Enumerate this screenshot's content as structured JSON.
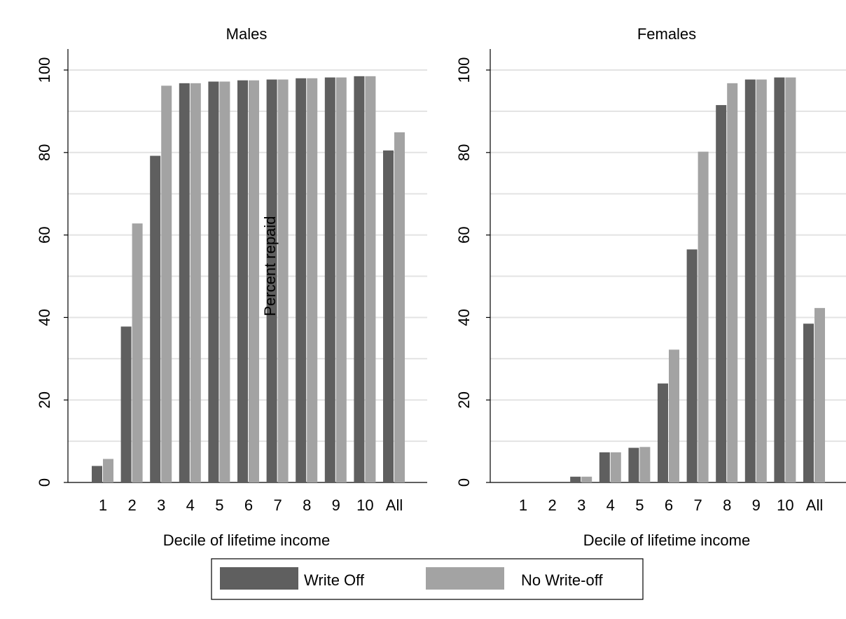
{
  "chart_data": [
    {
      "type": "bar",
      "title": "Males",
      "xlabel": "Decile of lifetime income",
      "ylabel": "",
      "ylim": [
        0,
        100
      ],
      "yticks": [
        0,
        20,
        40,
        60,
        80,
        100
      ],
      "categories": [
        "1",
        "2",
        "3",
        "4",
        "5",
        "6",
        "7",
        "8",
        "9",
        "10",
        "All"
      ],
      "series": [
        {
          "name": "Write Off",
          "color": "#5f5f5f",
          "values": [
            4.0,
            37.8,
            79.2,
            96.8,
            97.2,
            97.5,
            97.7,
            98.0,
            98.2,
            98.5,
            80.5
          ]
        },
        {
          "name": "No Write-off",
          "color": "#a3a3a3",
          "values": [
            5.7,
            62.8,
            96.2,
            96.8,
            97.2,
            97.5,
            97.7,
            98.0,
            98.2,
            98.5,
            84.9
          ]
        }
      ],
      "grid": true
    },
    {
      "type": "bar",
      "title": "Females",
      "xlabel": "Decile of lifetime income",
      "ylabel": "",
      "ylim": [
        0,
        100
      ],
      "yticks": [
        0,
        20,
        40,
        60,
        80,
        100
      ],
      "categories": [
        "1",
        "2",
        "3",
        "4",
        "5",
        "6",
        "7",
        "8",
        "9",
        "10",
        "All"
      ],
      "series": [
        {
          "name": "Write Off",
          "color": "#5f5f5f",
          "values": [
            0,
            0,
            1.4,
            7.3,
            8.4,
            24.0,
            56.5,
            91.5,
            97.7,
            98.2,
            38.5
          ]
        },
        {
          "name": "No Write-off",
          "color": "#a3a3a3",
          "values": [
            0,
            0,
            1.4,
            7.3,
            8.6,
            32.2,
            80.2,
            96.8,
            97.7,
            98.2,
            42.3
          ]
        }
      ],
      "grid": true
    }
  ],
  "shared_ylabel": "Percent repaid",
  "legend": {
    "placement": "bottom",
    "items": [
      {
        "label": "Write Off",
        "color": "#5f5f5f"
      },
      {
        "label": "No Write-off",
        "color": "#a3a3a3"
      }
    ]
  }
}
